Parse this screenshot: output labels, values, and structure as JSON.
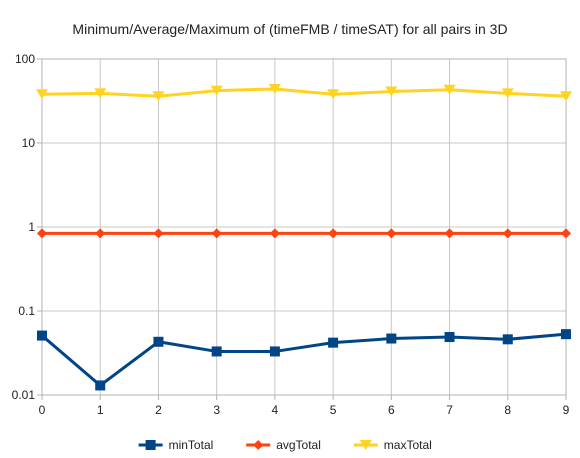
{
  "chart_data": {
    "type": "line",
    "title": "Minimum/Average/Maximum of (timeFMB / timeSAT) for all pairs in 3D",
    "xlabel": "",
    "ylabel": "",
    "y_scale": "log",
    "ylim": [
      0.01,
      100
    ],
    "grid": true,
    "legend_position": "bottom",
    "x": [
      0,
      1,
      2,
      3,
      4,
      5,
      6,
      7,
      8,
      9
    ],
    "x_tick_labels": [
      "0",
      "1",
      "2",
      "3",
      "4",
      "5",
      "6",
      "7",
      "8",
      "9"
    ],
    "y_tick_labels": [
      "0.01",
      "0.1",
      "1",
      "10",
      "100"
    ],
    "y_tick_values": [
      0.01,
      0.1,
      1,
      10,
      100
    ],
    "series": [
      {
        "name": "minTotal",
        "color": "#004586",
        "marker": "square",
        "values": [
          0.051,
          0.013,
          0.043,
          0.033,
          0.033,
          0.042,
          0.047,
          0.049,
          0.046,
          0.053
        ]
      },
      {
        "name": "avgTotal",
        "color": "#ff420e",
        "marker": "diamond",
        "values": [
          0.84,
          0.84,
          0.84,
          0.84,
          0.84,
          0.84,
          0.84,
          0.84,
          0.84,
          0.84
        ]
      },
      {
        "name": "maxTotal",
        "color": "#ffd320",
        "marker": "triangle-down",
        "values": [
          38,
          39,
          36,
          42,
          44,
          38,
          41,
          43,
          39,
          36
        ]
      }
    ]
  }
}
